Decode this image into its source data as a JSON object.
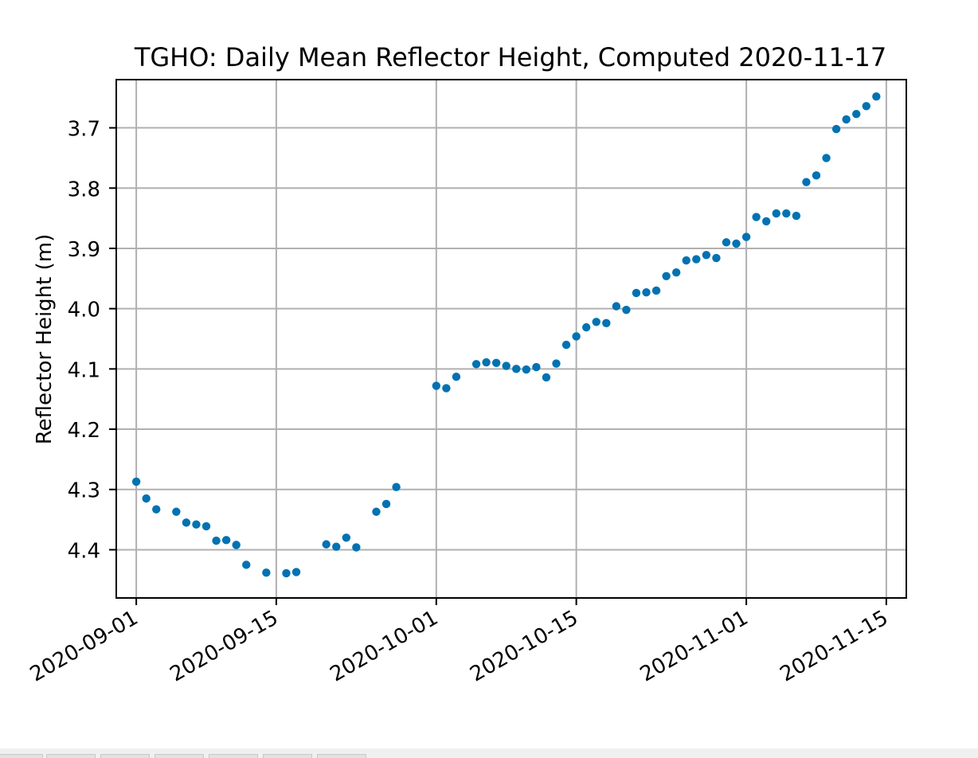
{
  "chart_data": {
    "type": "scatter",
    "title": "TGHO: Daily Mean Reflector Height, Computed 2020-11-17",
    "xlabel": "",
    "ylabel": "Reflector Height (m)",
    "x_axis_type": "date",
    "xlim": [
      "2020-08-30",
      "2020-11-17"
    ],
    "ylim": [
      4.48,
      3.62
    ],
    "y_inverted": true,
    "grid": true,
    "x_ticks": [
      "2020-09-01",
      "2020-09-15",
      "2020-10-01",
      "2020-10-15",
      "2020-11-01",
      "2020-11-15"
    ],
    "y_ticks": [
      3.7,
      3.8,
      3.9,
      4.0,
      4.1,
      4.2,
      4.3,
      4.4
    ],
    "marker_color": "#0072b2",
    "series": [
      {
        "name": "",
        "points": [
          [
            "2020-09-01",
            4.287
          ],
          [
            "2020-09-02",
            4.315
          ],
          [
            "2020-09-03",
            4.333
          ],
          [
            "2020-09-05",
            4.337
          ],
          [
            "2020-09-06",
            4.355
          ],
          [
            "2020-09-07",
            4.358
          ],
          [
            "2020-09-08",
            4.361
          ],
          [
            "2020-09-09",
            4.385
          ],
          [
            "2020-09-10",
            4.384
          ],
          [
            "2020-09-11",
            4.392
          ],
          [
            "2020-09-12",
            4.425
          ],
          [
            "2020-09-14",
            4.438
          ],
          [
            "2020-09-16",
            4.439
          ],
          [
            "2020-09-17",
            4.437
          ],
          [
            "2020-09-20",
            4.391
          ],
          [
            "2020-09-21",
            4.395
          ],
          [
            "2020-09-22",
            4.38
          ],
          [
            "2020-09-23",
            4.396
          ],
          [
            "2020-09-25",
            4.337
          ],
          [
            "2020-09-26",
            4.324
          ],
          [
            "2020-09-27",
            4.296
          ],
          [
            "2020-10-01",
            4.128
          ],
          [
            "2020-10-02",
            4.132
          ],
          [
            "2020-10-03",
            4.113
          ],
          [
            "2020-10-05",
            4.092
          ],
          [
            "2020-10-06",
            4.089
          ],
          [
            "2020-10-07",
            4.09
          ],
          [
            "2020-10-08",
            4.095
          ],
          [
            "2020-10-09",
            4.1
          ],
          [
            "2020-10-10",
            4.101
          ],
          [
            "2020-10-11",
            4.097
          ],
          [
            "2020-10-12",
            4.114
          ],
          [
            "2020-10-13",
            4.091
          ],
          [
            "2020-10-14",
            4.06
          ],
          [
            "2020-10-15",
            4.046
          ],
          [
            "2020-10-16",
            4.031
          ],
          [
            "2020-10-17",
            4.022
          ],
          [
            "2020-10-18",
            4.024
          ],
          [
            "2020-10-19",
            3.996
          ],
          [
            "2020-10-20",
            4.002
          ],
          [
            "2020-10-21",
            3.974
          ],
          [
            "2020-10-22",
            3.973
          ],
          [
            "2020-10-23",
            3.97
          ],
          [
            "2020-10-24",
            3.946
          ],
          [
            "2020-10-25",
            3.94
          ],
          [
            "2020-10-26",
            3.92
          ],
          [
            "2020-10-27",
            3.918
          ],
          [
            "2020-10-28",
            3.911
          ],
          [
            "2020-10-29",
            3.916
          ],
          [
            "2020-10-30",
            3.89
          ],
          [
            "2020-10-31",
            3.892
          ],
          [
            "2020-11-01",
            3.881
          ],
          [
            "2020-11-02",
            3.848
          ],
          [
            "2020-11-03",
            3.855
          ],
          [
            "2020-11-04",
            3.842
          ],
          [
            "2020-11-05",
            3.842
          ],
          [
            "2020-11-06",
            3.846
          ],
          [
            "2020-11-07",
            3.79
          ],
          [
            "2020-11-08",
            3.779
          ],
          [
            "2020-11-09",
            3.75
          ],
          [
            "2020-11-10",
            3.702
          ],
          [
            "2020-11-11",
            3.686
          ],
          [
            "2020-11-12",
            3.677
          ],
          [
            "2020-11-13",
            3.664
          ],
          [
            "2020-11-14",
            3.648
          ]
        ]
      }
    ]
  }
}
